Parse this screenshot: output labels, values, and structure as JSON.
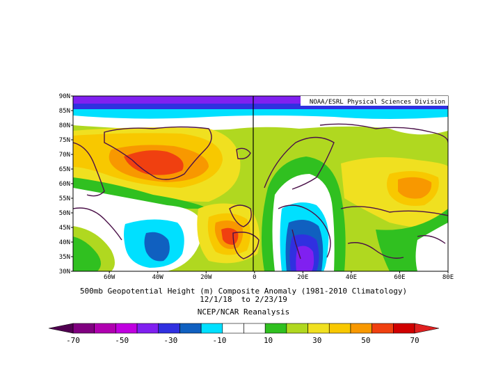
{
  "header": {
    "credit": "NOAA/ESRL Physical Sciences Division"
  },
  "map": {
    "lat_labels": [
      "90N",
      "85N",
      "80N",
      "75N",
      "70N",
      "65N",
      "60N",
      "55N",
      "50N",
      "45N",
      "40N",
      "35N",
      "30N"
    ],
    "lon_labels": [
      "60W",
      "40W",
      "20W",
      "0",
      "20E",
      "40E",
      "60E",
      "80E"
    ],
    "lat_range": [
      30,
      90
    ],
    "lon_range": [
      -75,
      80
    ]
  },
  "caption": {
    "line1": "500mb Geopotential Height (m) Composite Anomaly (1981-2010 Climatology)",
    "line2": "12/1/18  to 2/23/19",
    "line3": "NCEP/NCAR Reanalysis"
  },
  "colorbar": {
    "colors": [
      "#800080",
      "#b000b0",
      "#c000e0",
      "#8020f0",
      "#3030e0",
      "#1060c0",
      "#00e0ff",
      "#ffffff",
      "#ffffff",
      "#30c020",
      "#b0d820",
      "#f0e020",
      "#f8c800",
      "#f89800",
      "#f04010",
      "#d00000"
    ],
    "tick_labels": [
      "-70",
      "-50",
      "-30",
      "-10",
      "10",
      "30",
      "50",
      "70"
    ]
  }
}
